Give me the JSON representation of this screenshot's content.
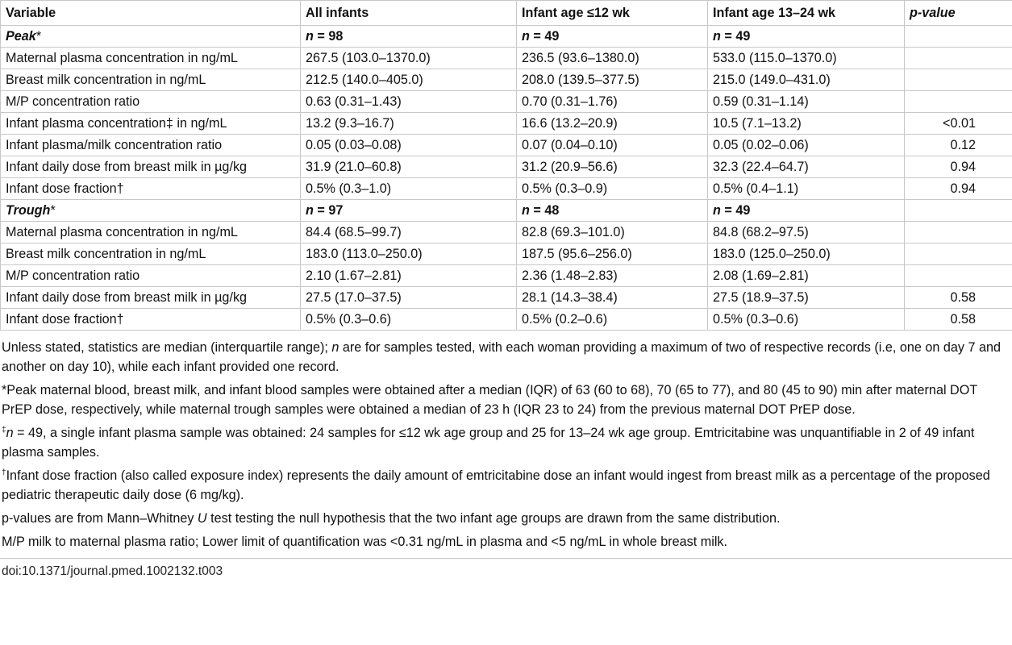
{
  "table": {
    "headers": [
      "Variable",
      "All infants",
      "Infant age ≤12 wk",
      "Infant age 13–24 wk",
      "p-value"
    ],
    "peak": {
      "label": "Peak",
      "n_all": "98",
      "n_le12": "49",
      "n_13_24": "49",
      "rows": [
        {
          "variable": "Maternal plasma concentration in ng/mL",
          "all": "267.5 (103.0–1370.0)",
          "le12": "236.5 (93.6–1380.0)",
          "a13_24": "533.0 (115.0–1370.0)",
          "p": ""
        },
        {
          "variable": "Breast milk concentration in ng/mL",
          "all": "212.5 (140.0–405.0)",
          "le12": "208.0 (139.5–377.5)",
          "a13_24": "215.0 (149.0–431.0)",
          "p": ""
        },
        {
          "variable": "M/P concentration ratio",
          "all": "0.63 (0.31–1.43)",
          "le12": "0.70 (0.31–1.76)",
          "a13_24": "0.59 (0.31–1.14)",
          "p": ""
        },
        {
          "variable": "Infant plasma concentration‡ in ng/mL",
          "all": "13.2 (9.3–16.7)",
          "le12": "16.6 (13.2–20.9)",
          "a13_24": "10.5 (7.1–13.2)",
          "p": "<0.01"
        },
        {
          "variable": "Infant plasma/milk concentration ratio",
          "all": "0.05 (0.03–0.08)",
          "le12": "0.07 (0.04–0.10)",
          "a13_24": "0.05 (0.02–0.06)",
          "p": "0.12"
        },
        {
          "variable": "Infant daily dose from breast milk in µg/kg",
          "all": "31.9 (21.0–60.8)",
          "le12": "31.2 (20.9–56.6)",
          "a13_24": "32.3 (22.4–64.7)",
          "p": "0.94"
        },
        {
          "variable": "Infant dose fraction†",
          "all": "0.5% (0.3–1.0)",
          "le12": "0.5% (0.3–0.9)",
          "a13_24": "0.5% (0.4–1.1)",
          "p": "0.94"
        }
      ]
    },
    "trough": {
      "label": "Trough",
      "n_all": "97",
      "n_le12": "48",
      "n_13_24": "49",
      "rows": [
        {
          "variable": "Maternal plasma concentration in ng/mL",
          "all": "84.4 (68.5–99.7)",
          "le12": "82.8 (69.3–101.0)",
          "a13_24": "84.8 (68.2–97.5)",
          "p": ""
        },
        {
          "variable": "Breast milk concentration in ng/mL",
          "all": "183.0 (113.0–250.0)",
          "le12": "187.5 (95.6–256.0)",
          "a13_24": "183.0 (125.0–250.0)",
          "p": ""
        },
        {
          "variable": "M/P concentration ratio",
          "all": "2.10 (1.67–2.81)",
          "le12": "2.36 (1.48–2.83)",
          "a13_24": "2.08 (1.69–2.81)",
          "p": ""
        },
        {
          "variable": "Infant daily dose from breast milk in µg/kg",
          "all": "27.5 (17.0–37.5)",
          "le12": "28.1 (14.3–38.4)",
          "a13_24": "27.5 (18.9–37.5)",
          "p": "0.58"
        },
        {
          "variable": "Infant dose fraction†",
          "all": "0.5% (0.3–0.6)",
          "le12": "0.5% (0.2–0.6)",
          "a13_24": "0.5% (0.3–0.6)",
          "p": "0.58"
        }
      ]
    }
  },
  "notes": {
    "n1_a": "Unless stated, statistics are median (interquartile range); ",
    "n1_n": "n",
    "n1_b": " are for samples tested, with each woman providing a maximum of two of respective records (i.e, one on day 7 and another on day 10), while each infant provided one record.",
    "n2": "*Peak maternal blood, breast milk, and infant blood samples were obtained after a median (IQR) of 63 (60 to 68), 70 (65 to 77), and 80 (45 to 90) min after maternal DOT PrEP dose, respectively, while maternal trough samples were obtained a median of 23 h (IQR 23 to 24) from the previous maternal DOT PrEP dose.",
    "n3_sup": "‡",
    "n3_n": "n",
    "n3_b": " = 49, a single infant plasma sample was obtained: 24 samples for ≤12 wk age group and 25 for 13–24 wk age group. Emtricitabine was unquantifiable in 2 of 49 infant plasma samples.",
    "n4_sup": "†",
    "n4_b": "Infant dose fraction (also called exposure index) represents the daily amount of emtricitabine dose an infant would ingest from breast milk as a percentage of the proposed pediatric therapeutic daily dose (6 mg/kg).",
    "n5_a": "p-values are from Mann–Whitney ",
    "n5_u": "U",
    "n5_b": " test testing the null hypothesis that the two infant age groups are drawn from the same distribution.",
    "n6": "M/P milk to maternal plasma ratio; Lower limit of quantification was <0.31 ng/mL in plasma and <5 ng/mL in whole breast milk."
  },
  "doi": "doi:10.1371/journal.pmed.1002132.t003"
}
